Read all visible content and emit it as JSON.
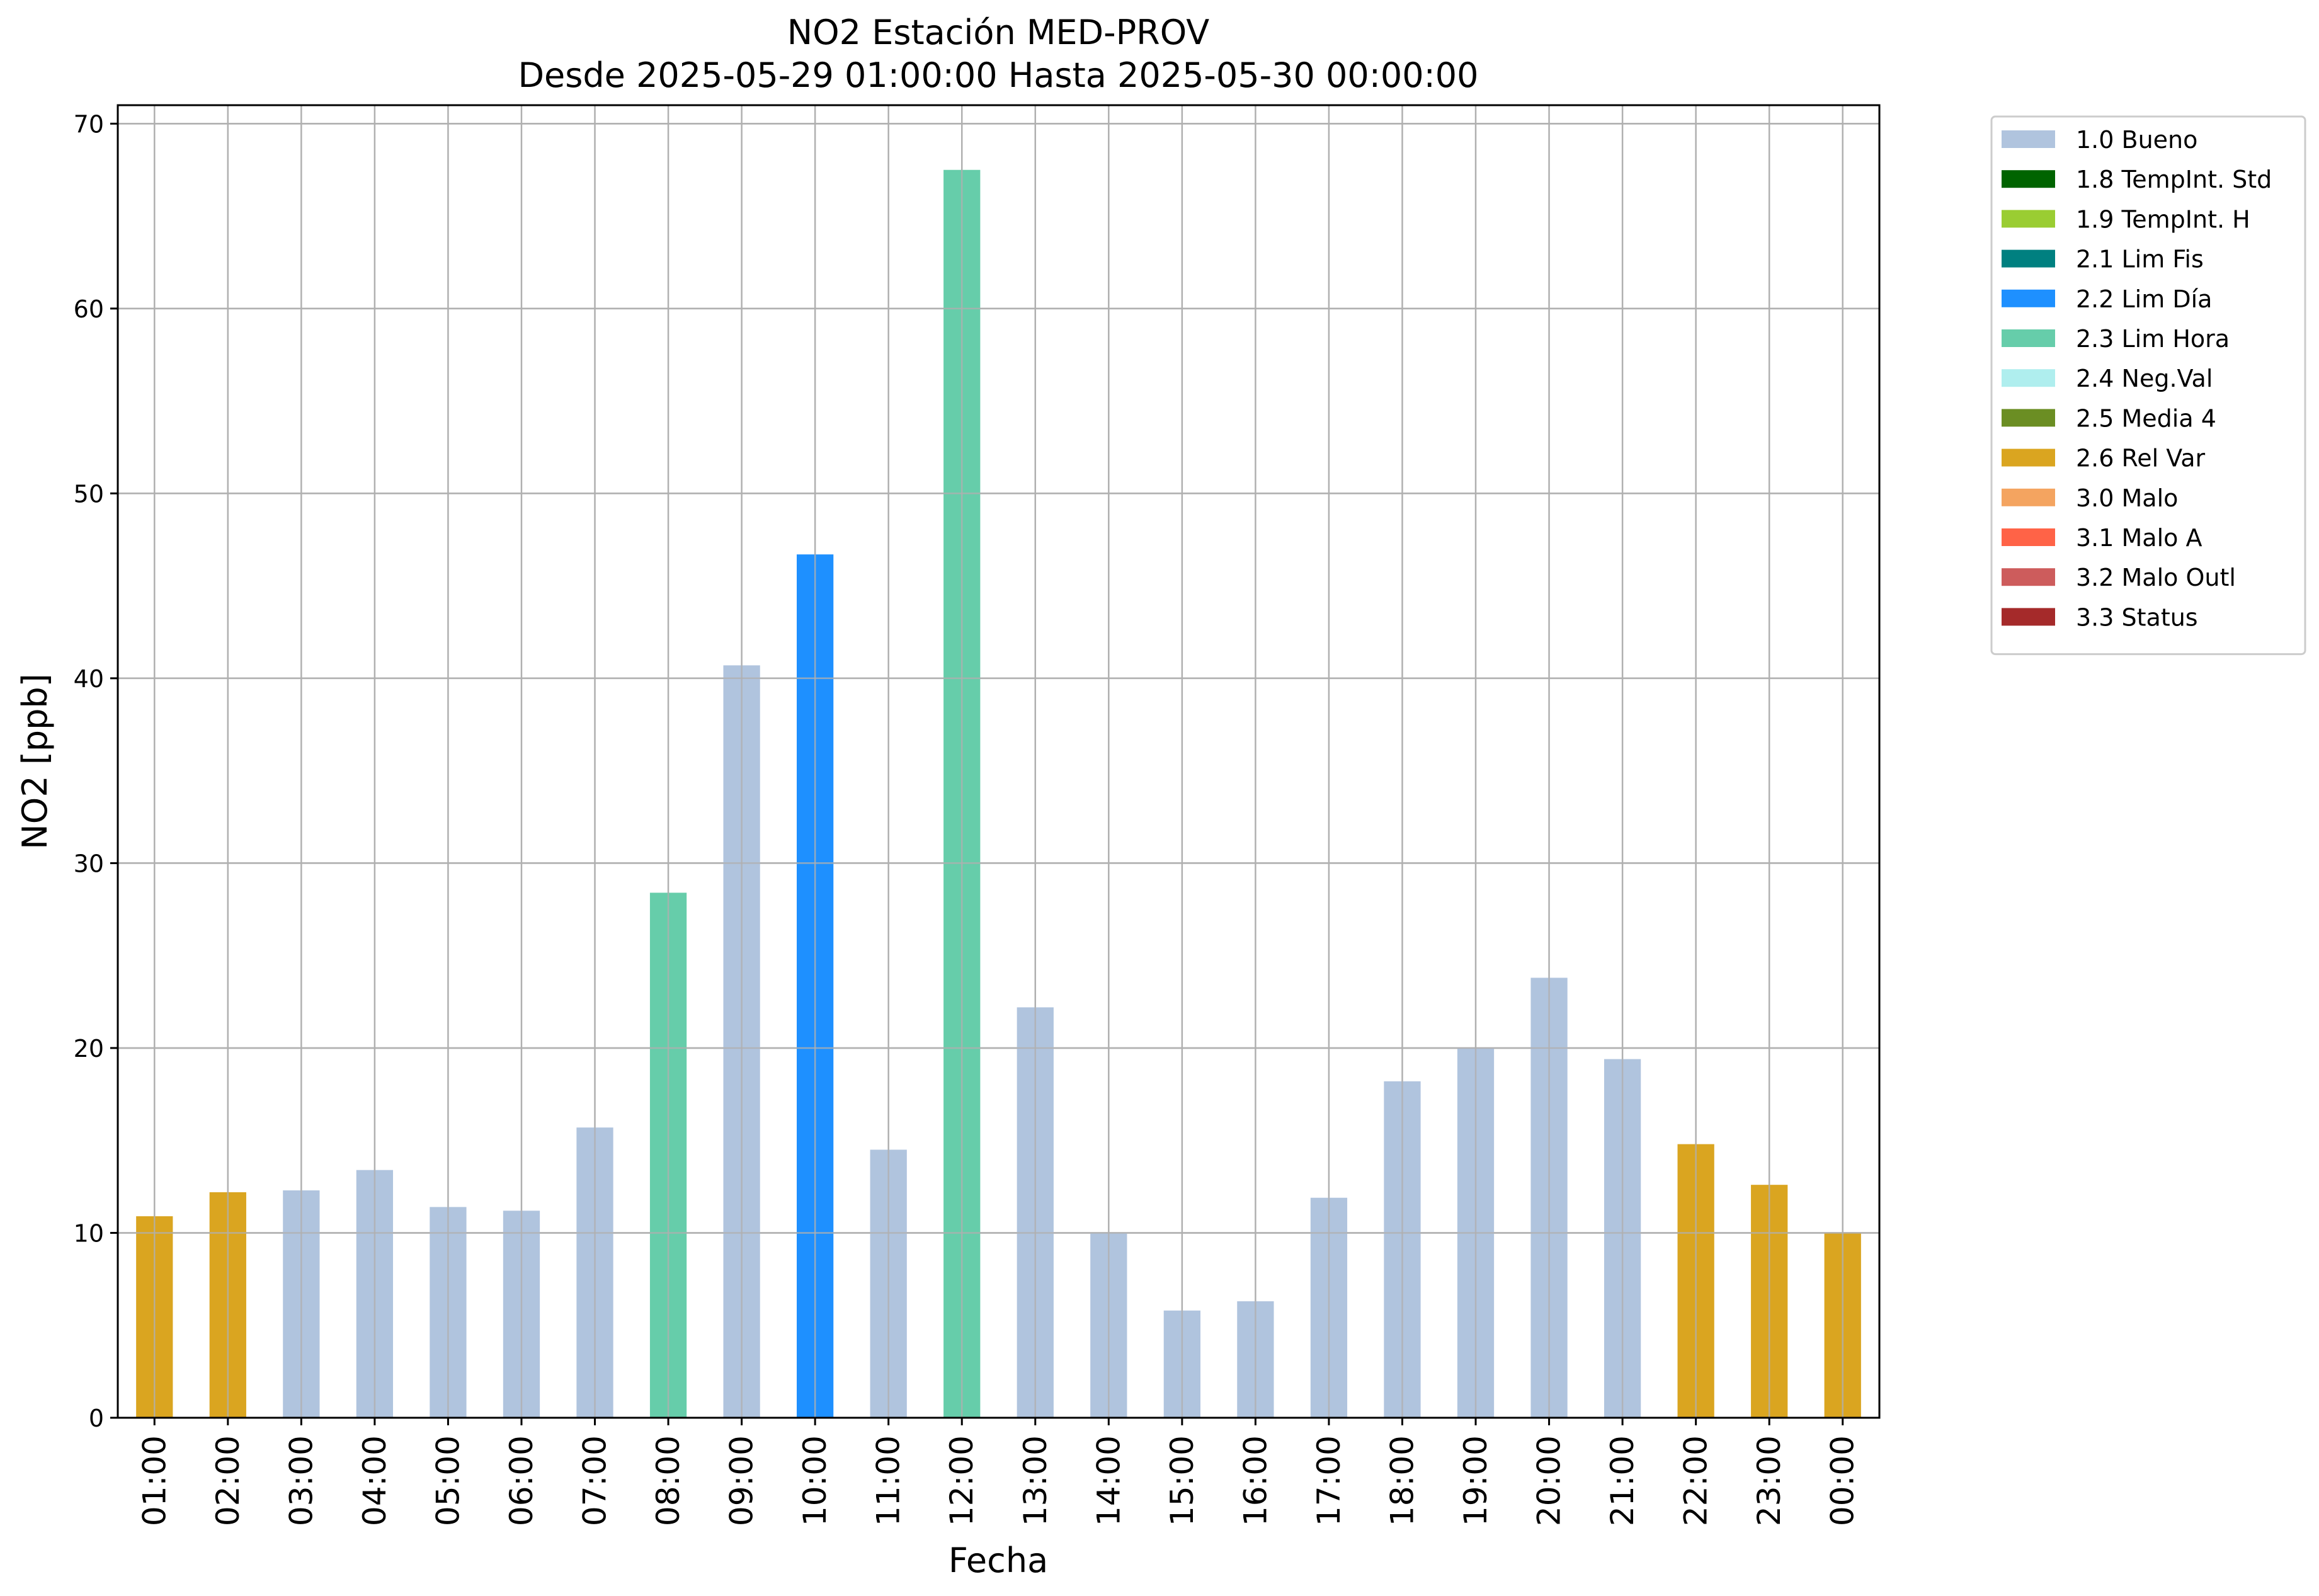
{
  "chart_data": {
    "type": "bar",
    "title": "NO2 Estación MED-PROV",
    "subtitle": "Desde 2025-05-29 01:00:00 Hasta 2025-05-30 00:00:00",
    "xlabel": "Fecha",
    "ylabel": "NO2 [ppb]",
    "ylim": [
      0,
      71
    ],
    "yticks": [
      0,
      10,
      20,
      30,
      40,
      50,
      60,
      70
    ],
    "grid": true,
    "legend_position": "outside-top-right",
    "categories": [
      "01:00",
      "02:00",
      "03:00",
      "04:00",
      "05:00",
      "06:00",
      "07:00",
      "08:00",
      "09:00",
      "10:00",
      "11:00",
      "12:00",
      "13:00",
      "14:00",
      "15:00",
      "16:00",
      "17:00",
      "18:00",
      "19:00",
      "20:00",
      "21:00",
      "22:00",
      "23:00",
      "00:00"
    ],
    "values": [
      10.9,
      12.2,
      12.3,
      13.4,
      11.4,
      11.2,
      15.7,
      28.4,
      40.7,
      46.7,
      14.5,
      67.5,
      22.2,
      10.0,
      5.8,
      6.3,
      11.9,
      18.2,
      20.0,
      23.8,
      19.4,
      14.8,
      12.6,
      10.0
    ],
    "flags": [
      "2.6 Rel Var",
      "2.6 Rel Var",
      "1.0 Bueno",
      "1.0 Bueno",
      "1.0 Bueno",
      "1.0 Bueno",
      "1.0 Bueno",
      "2.3 Lim Hora",
      "1.0 Bueno",
      "2.2 Lim Día",
      "1.0 Bueno",
      "2.3 Lim Hora",
      "1.0 Bueno",
      "1.0 Bueno",
      "1.0 Bueno",
      "1.0 Bueno",
      "1.0 Bueno",
      "1.0 Bueno",
      "1.0 Bueno",
      "1.0 Bueno",
      "1.0 Bueno",
      "2.6 Rel Var",
      "2.6 Rel Var",
      "2.6 Rel Var"
    ],
    "legend": [
      {
        "label": "1.0 Bueno",
        "color": "#b0c4de"
      },
      {
        "label": "1.8 TempInt. Std",
        "color": "#006400"
      },
      {
        "label": "1.9 TempInt. H",
        "color": "#9acd32"
      },
      {
        "label": "2.1 Lim Fis",
        "color": "#008080"
      },
      {
        "label": "2.2 Lim Día",
        "color": "#1e90ff"
      },
      {
        "label": "2.3 Lim Hora",
        "color": "#66cdaa"
      },
      {
        "label": "2.4 Neg.Val",
        "color": "#afeeee"
      },
      {
        "label": "2.5 Media 4",
        "color": "#6b8e23"
      },
      {
        "label": "2.6 Rel Var",
        "color": "#daa520"
      },
      {
        "label": "3.0 Malo",
        "color": "#f4a460"
      },
      {
        "label": "3.1 Malo A",
        "color": "#ff6347"
      },
      {
        "label": "3.2 Malo Outl",
        "color": "#cd5c5c"
      },
      {
        "label": "3.3 Status",
        "color": "#a52a2a"
      }
    ]
  }
}
